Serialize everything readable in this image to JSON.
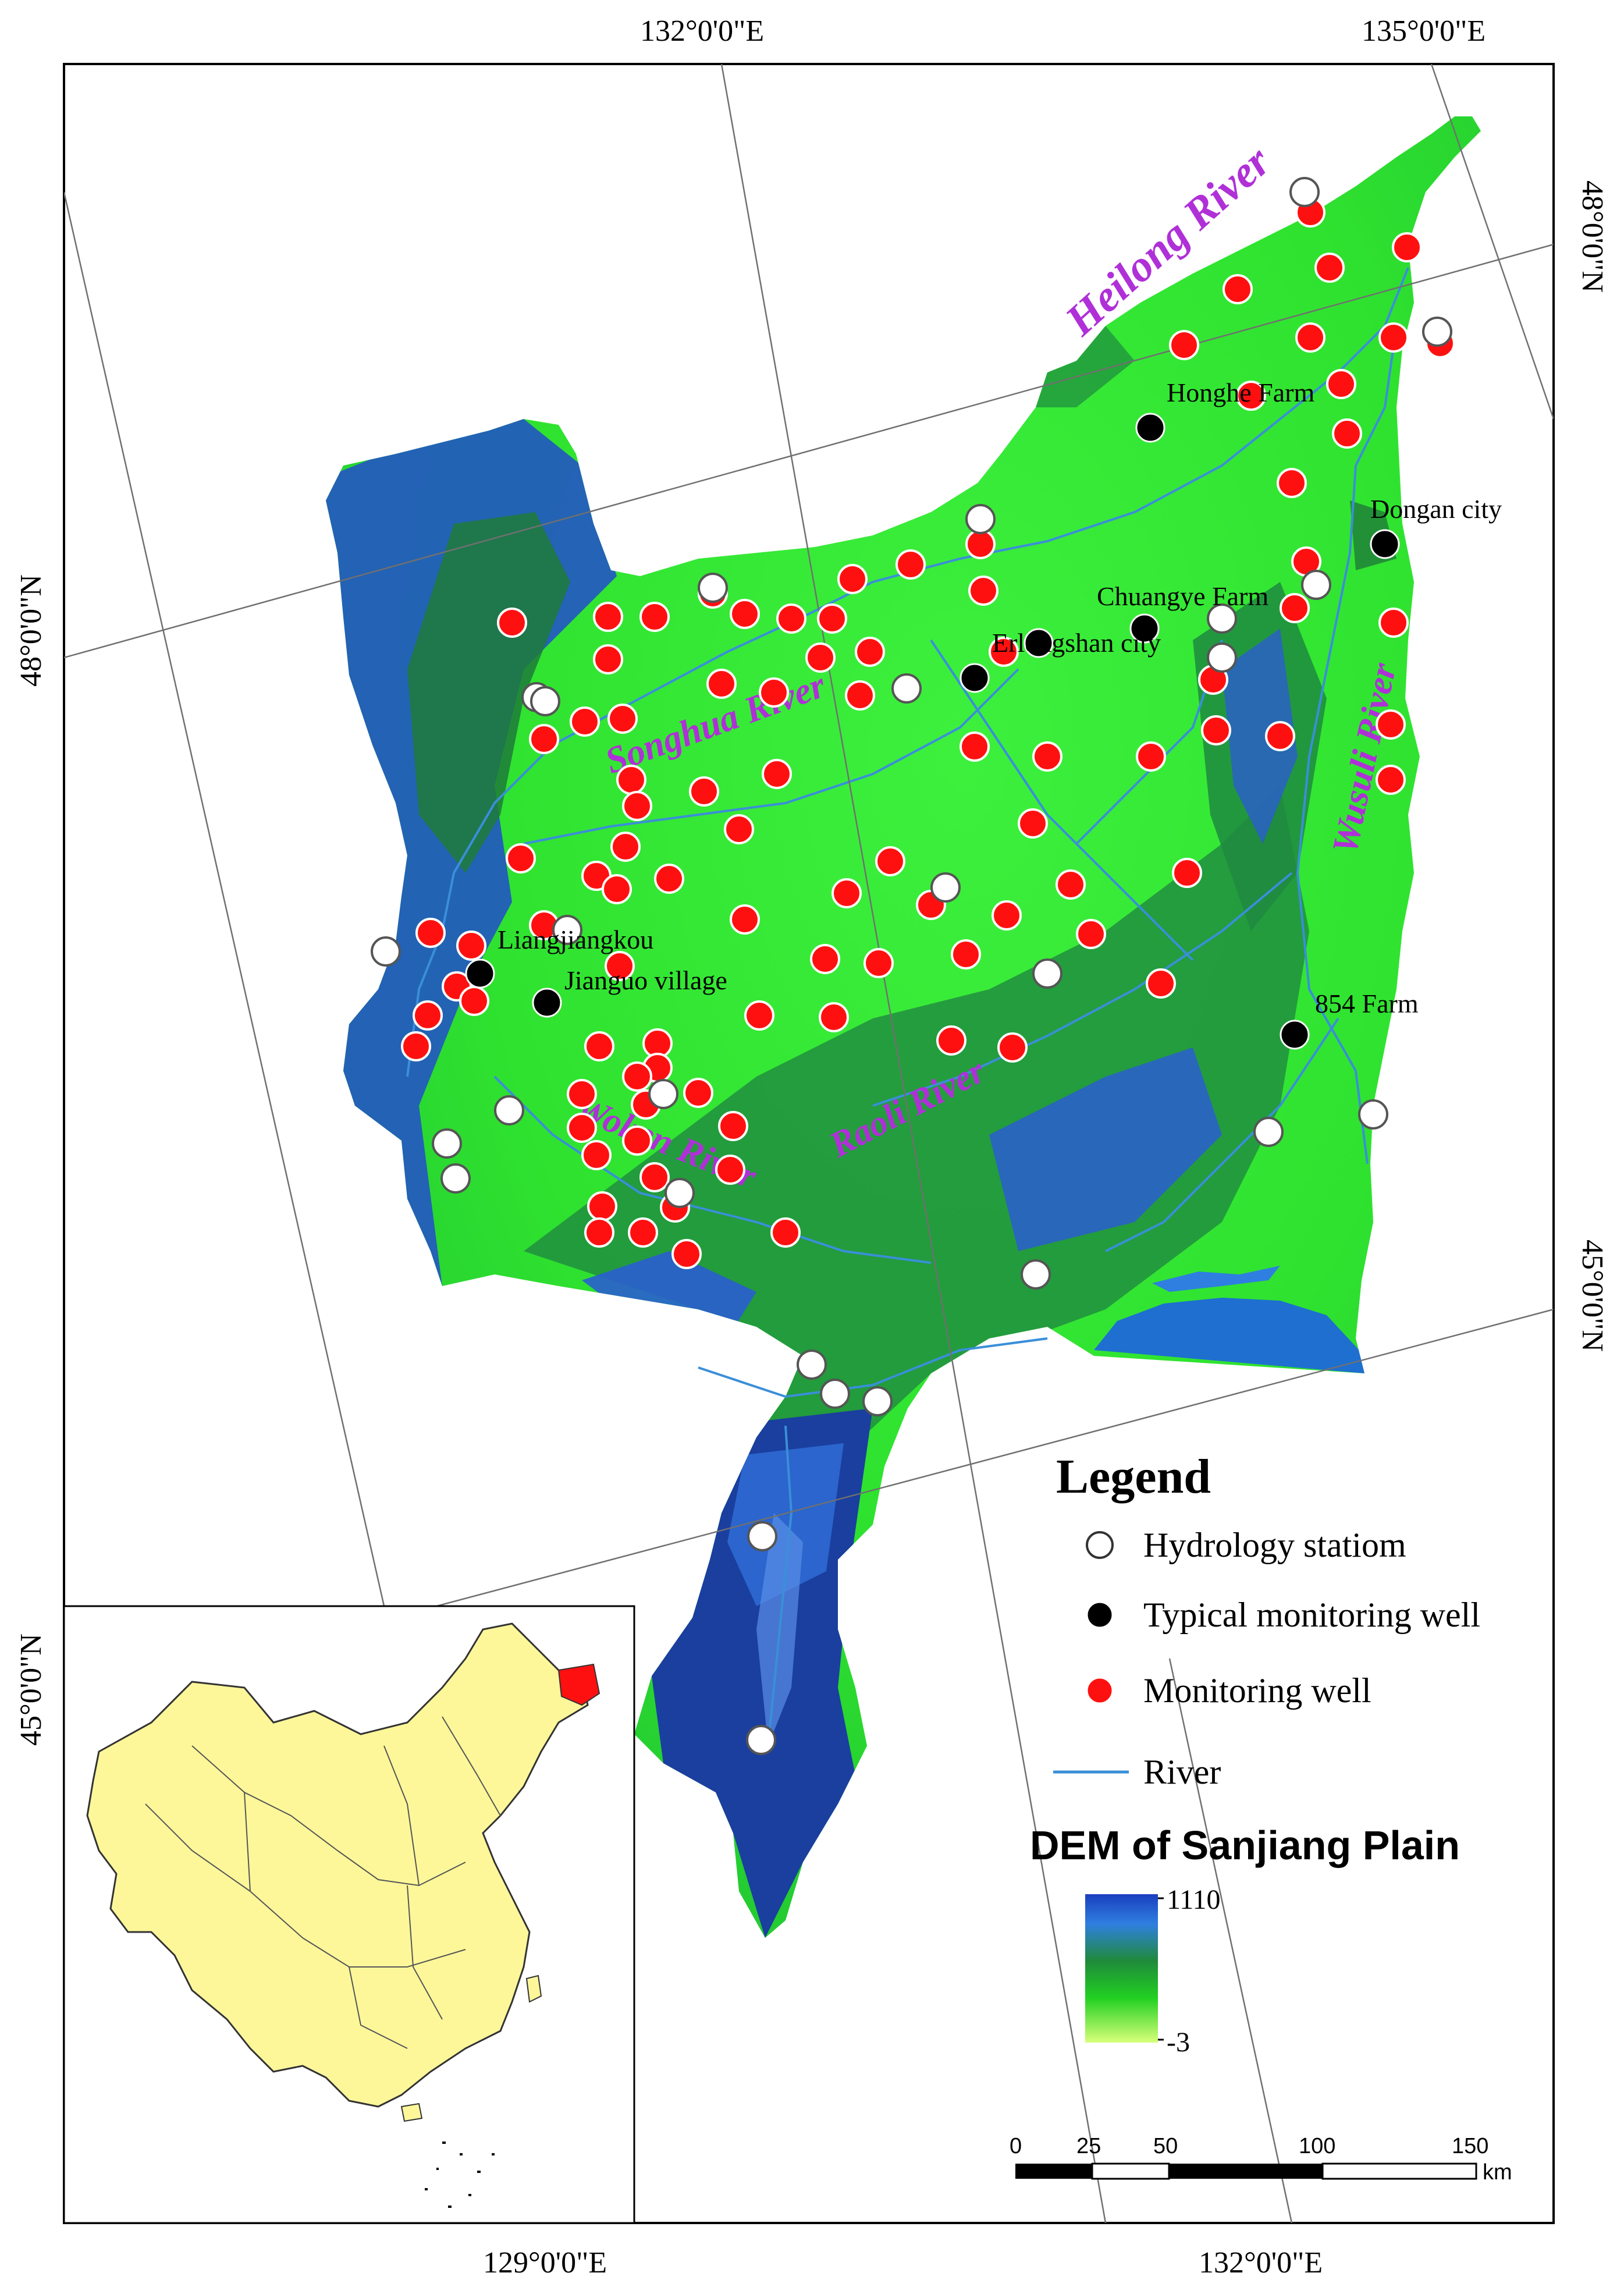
{
  "coordinates": {
    "top": [
      "132°0'0\"E",
      "135°0'0\"E"
    ],
    "bottom": [
      "129°0'0\"E",
      "132°0'0\"E"
    ],
    "left": [
      "48°0'0\"N",
      "45°0'0\"N"
    ],
    "right": [
      "48°0'0\"N",
      "45°0'0\"N"
    ]
  },
  "rivers": {
    "heilong": "Heilong River",
    "songhua": "Songhua River",
    "wusuli": "Wusuli River",
    "raoli": "Raoli River",
    "woken": "Woken River"
  },
  "places": {
    "honghe": "Honghe Farm",
    "dongan": "Dongan city",
    "chuangye": "Chuangye Farm",
    "erlongshan": "Erlongshan city",
    "liangjiangkou": "Liangjiangkou",
    "jianguo": "Jianguo village",
    "farm854": "854 Farm"
  },
  "legend": {
    "title": "Legend",
    "hydrology": "Hydrology statiom",
    "typical": "Typical monitoring well",
    "monitoring": "Monitoring well",
    "river": "River"
  },
  "dem": {
    "title": "DEM of  Sanjiang Plain",
    "max": "1110",
    "min": "-3"
  },
  "scale": {
    "ticks": [
      "0",
      "25",
      "50",
      "100",
      "150"
    ],
    "unit": "km"
  },
  "colors": {
    "plain_green": "#33e633",
    "mountain_blue": "#1a3fa0",
    "monitoring_well": "#ff1010",
    "typical_well": "#000000",
    "hydrology_station": "#ffffff",
    "river_line": "#3a8fd8",
    "river_label": "#b030d8",
    "china_fill": "#fdf79a",
    "study_area_fill": "#ff1010"
  }
}
